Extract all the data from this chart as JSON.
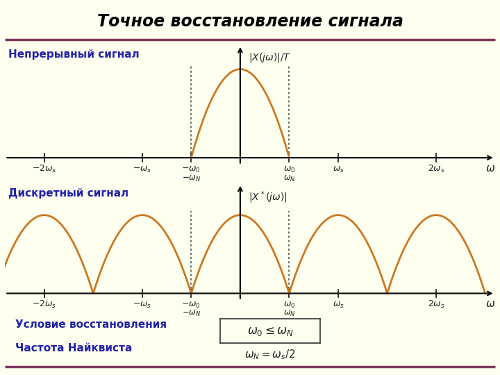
{
  "title": "Точное восстановление сигнала",
  "bg_color": "#FFFFF0",
  "title_color": "#000000",
  "header_line_color": "#7B3B5E",
  "label_continuous": "Непрерывный сигнал",
  "label_discrete": "Дискретный сигнал",
  "label_condition": "Условие восстановления",
  "label_nyquist": "Частота Найквиста",
  "formula1": "$\\omega_0 \\leq \\omega_N$",
  "formula2": "$\\omega_N = \\omega_s/2$",
  "curve_color": "#CC7722",
  "axis_color": "#111111",
  "dashed_color": "#444444",
  "text_color_blue": "#2222AA",
  "text_color_dark": "#222222",
  "omega_0": 1.5,
  "omega_N": 1.5,
  "omega_s": 3.0
}
